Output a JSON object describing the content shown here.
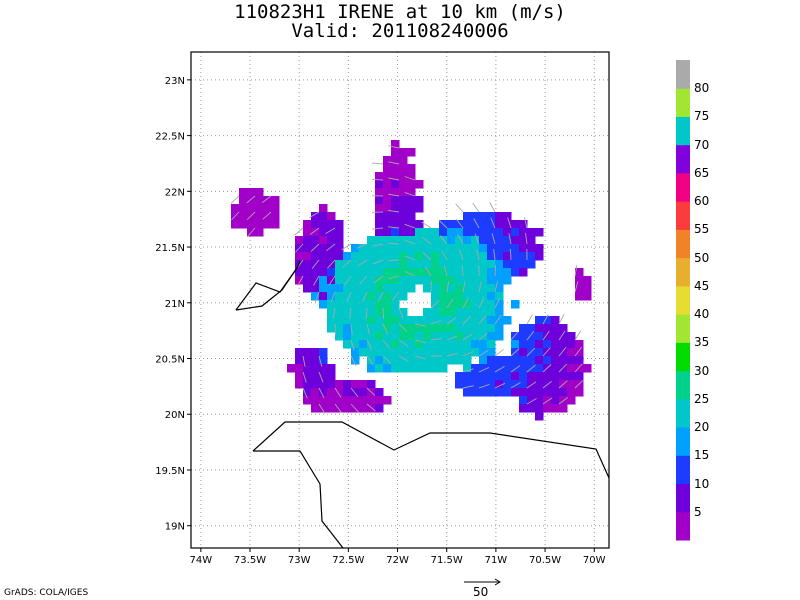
{
  "title": "110823H1 IRENE at 10 km (m/s)",
  "subtitle": "Valid: 201108240006",
  "credit": "GrADS: COLA/IGES",
  "vector_scale_label": "50",
  "map": {
    "lon_range": [
      -74.1,
      -69.85
    ],
    "lat_range": [
      18.8,
      23.25
    ],
    "lon_ticks": [
      {
        "value": -74,
        "label": "74W"
      },
      {
        "value": -73.5,
        "label": "73.5W"
      },
      {
        "value": -73,
        "label": "73W"
      },
      {
        "value": -72.5,
        "label": "72.5W"
      },
      {
        "value": -72,
        "label": "72W"
      },
      {
        "value": -71.5,
        "label": "71.5W"
      },
      {
        "value": -71,
        "label": "71W"
      },
      {
        "value": -70.5,
        "label": "70.5W"
      },
      {
        "value": -70,
        "label": "70W"
      }
    ],
    "lat_ticks": [
      {
        "value": 19,
        "label": "19N"
      },
      {
        "value": 19.5,
        "label": "19.5N"
      },
      {
        "value": 20,
        "label": "20N"
      },
      {
        "value": 20.5,
        "label": "20.5N"
      },
      {
        "value": 21,
        "label": "21N"
      },
      {
        "value": 21.5,
        "label": "21.5N"
      },
      {
        "value": 22,
        "label": "22N"
      },
      {
        "value": 22.5,
        "label": "22.5N"
      },
      {
        "value": 23,
        "label": "23N"
      }
    ],
    "storm_center": {
      "lon": -71.85,
      "lat": 21.05
    }
  },
  "colorbar": {
    "bins": [
      {
        "color": "#a000c8",
        "label": "5"
      },
      {
        "color": "#6e00dc",
        "label": "10"
      },
      {
        "color": "#1e3cff",
        "label": "15"
      },
      {
        "color": "#00a0ff",
        "label": "20"
      },
      {
        "color": "#00c8c8",
        "label": "25"
      },
      {
        "color": "#00d28c",
        "label": "30"
      },
      {
        "color": "#00dc00",
        "label": "35"
      },
      {
        "color": "#a0e632",
        "label": "40"
      },
      {
        "color": "#e6dc32",
        "label": "45"
      },
      {
        "color": "#e6af2d",
        "label": "50"
      },
      {
        "color": "#f08228",
        "label": "55"
      },
      {
        "color": "#fa3c3c",
        "label": "60"
      },
      {
        "color": "#f00082",
        "label": "65"
      },
      {
        "color": "#8200dc",
        "label": "70"
      },
      {
        "color": "#00c8c8",
        "label": "75"
      },
      {
        "color": "#a0e632",
        "label": "80"
      },
      {
        "color": "#aaaaaa",
        "label": ""
      }
    ]
  }
}
